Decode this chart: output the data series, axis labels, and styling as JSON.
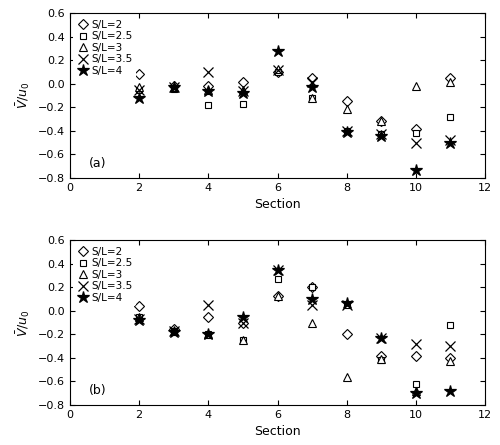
{
  "panel_a": {
    "title": "(a)",
    "series": [
      {
        "label": "S/L=2",
        "marker": "D",
        "sections": [
          2,
          3,
          4,
          5,
          6,
          7,
          8,
          9,
          10,
          11
        ],
        "values": [
          0.08,
          -0.02,
          -0.02,
          0.02,
          0.1,
          0.05,
          -0.15,
          -0.32,
          -0.38,
          0.05
        ]
      },
      {
        "label": "S/L=2.5",
        "marker": "s",
        "sections": [
          2,
          3,
          4,
          5,
          6,
          7,
          8,
          9,
          10,
          11
        ],
        "values": [
          -0.05,
          -0.04,
          -0.18,
          -0.17,
          0.1,
          -0.12,
          -0.4,
          -0.43,
          -0.42,
          -0.28
        ]
      },
      {
        "label": "S/L=3",
        "marker": "^",
        "sections": [
          2,
          3,
          4,
          5,
          6,
          7,
          8,
          9,
          10,
          11
        ],
        "values": [
          -0.03,
          -0.03,
          -0.05,
          -0.05,
          0.13,
          -0.12,
          -0.21,
          -0.32,
          -0.02,
          0.02
        ]
      },
      {
        "label": "S/L=3.5",
        "marker": "x",
        "sections": [
          2,
          3,
          4,
          5,
          6,
          7,
          8,
          9,
          10,
          11
        ],
        "values": [
          -0.05,
          -0.03,
          0.1,
          -0.06,
          0.12,
          0.02,
          -0.4,
          -0.43,
          -0.5,
          -0.48
        ]
      },
      {
        "label": "S/L=4",
        "marker": "*",
        "sections": [
          2,
          3,
          4,
          5,
          6,
          7,
          8,
          9,
          10,
          11
        ],
        "values": [
          -0.12,
          -0.03,
          -0.06,
          -0.08,
          0.28,
          -0.03,
          -0.41,
          -0.44,
          -0.73,
          -0.5
        ]
      }
    ]
  },
  "panel_b": {
    "title": "(b)",
    "series": [
      {
        "label": "S/L=2",
        "marker": "D",
        "sections": [
          2,
          3,
          4,
          5,
          6,
          7,
          8,
          9,
          10,
          11
        ],
        "values": [
          0.04,
          -0.15,
          -0.05,
          -0.1,
          0.13,
          0.2,
          -0.2,
          -0.38,
          -0.38,
          -0.4
        ]
      },
      {
        "label": "S/L=2.5",
        "marker": "s",
        "sections": [
          2,
          3,
          4,
          5,
          6,
          7,
          8,
          9,
          10,
          11
        ],
        "values": [
          -0.05,
          -0.17,
          -0.2,
          -0.25,
          0.27,
          0.2,
          0.05,
          -0.42,
          -0.62,
          -0.12
        ]
      },
      {
        "label": "S/L=3",
        "marker": "^",
        "sections": [
          2,
          3,
          4,
          5,
          6,
          7,
          8,
          9,
          10,
          11
        ],
        "values": [
          -0.05,
          -0.17,
          -0.2,
          -0.25,
          0.13,
          -0.1,
          -0.56,
          -0.41,
          -0.68,
          -0.43
        ]
      },
      {
        "label": "S/L=3.5",
        "marker": "x",
        "sections": [
          2,
          3,
          4,
          5,
          6,
          7,
          8,
          9,
          10,
          11
        ],
        "values": [
          -0.07,
          -0.17,
          0.05,
          -0.1,
          0.35,
          0.05,
          0.05,
          -0.23,
          -0.28,
          -0.3
        ]
      },
      {
        "label": "S/L=4",
        "marker": "*",
        "sections": [
          2,
          3,
          4,
          5,
          6,
          7,
          8,
          9,
          10,
          11
        ],
        "values": [
          -0.08,
          -0.18,
          -0.2,
          -0.05,
          0.35,
          0.1,
          0.07,
          -0.23,
          -0.7,
          -0.68
        ]
      }
    ]
  },
  "ylabel": "$\\bar{V}/u_0$",
  "xlabel": "Section",
  "xlim": [
    0,
    12
  ],
  "ylim": [
    -0.8,
    0.6
  ],
  "yticks": [
    -0.8,
    -0.6,
    -0.4,
    -0.2,
    0.0,
    0.2,
    0.4,
    0.6
  ],
  "xticks": [
    0,
    2,
    4,
    6,
    8,
    10,
    12
  ],
  "marker_sizes": {
    "D": 5,
    "s": 5,
    "^": 6,
    "x": 7,
    "*": 9
  },
  "open_markers": [
    "D",
    "s",
    "^"
  ],
  "black_color": "#000000"
}
